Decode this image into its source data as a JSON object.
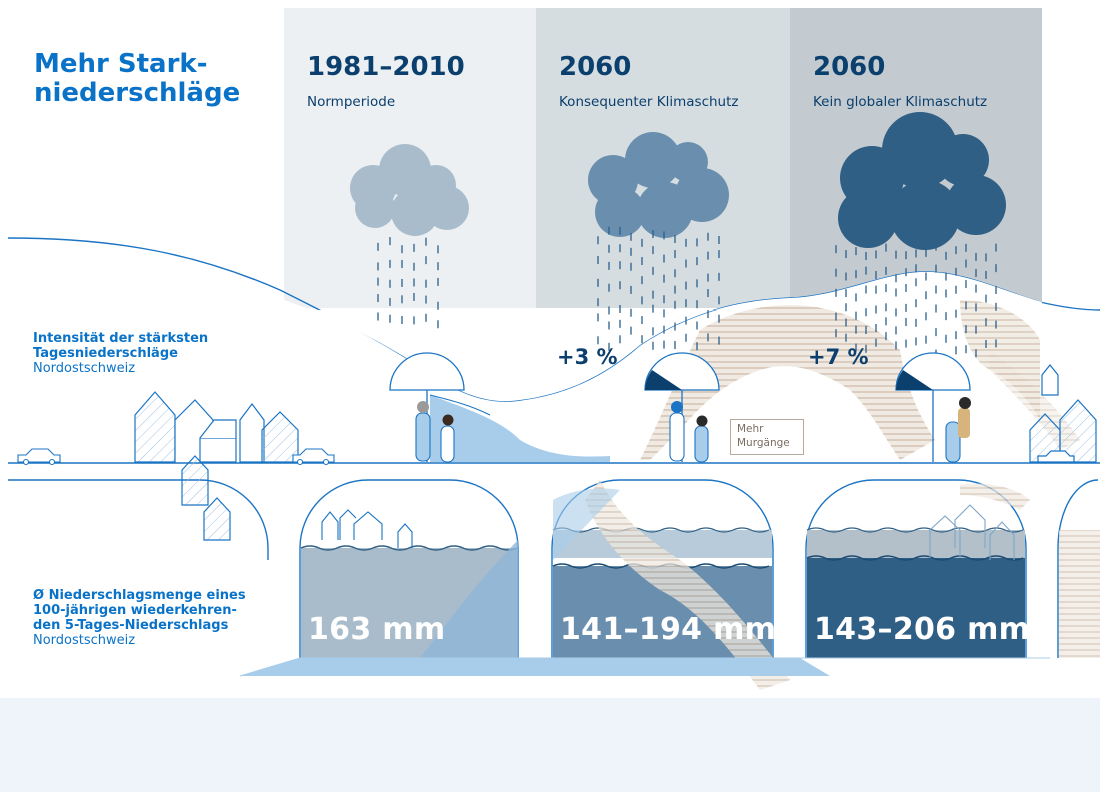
{
  "title": {
    "line1": "Mehr Stark-",
    "line2": "niederschläge"
  },
  "periods": [
    {
      "year": "1981–2010",
      "subtitle": "Normperiode"
    },
    {
      "year": "2060",
      "subtitle": "Konsequenter Klimaschutz"
    },
    {
      "year": "2060",
      "subtitle": "Kein globaler Klimaschutz"
    }
  ],
  "intensity_label": {
    "bold_line1": "Intensität der stärksten",
    "bold_line2": "Tagesniederschläge",
    "region": "Nordostschweiz"
  },
  "amount_label": {
    "bold_line1": "Ø Niederschlagsmenge eines",
    "bold_line2": "100-jährigen wiederkehren-",
    "bold_line3": "den 5-Tages-Niederschlags",
    "region": "Nordostschweiz"
  },
  "intensity_change": [
    "+3 %",
    "+7 %"
  ],
  "amounts": [
    "163 mm",
    "141–194 mm",
    "143–206 mm"
  ],
  "callout": {
    "line1": "Mehr",
    "line2": "Murgänge"
  },
  "colors": {
    "accent_blue": "#0a73c8",
    "dark_navy": "#0b3f6d",
    "cloud_light": "#a9bccb",
    "cloud_medium": "#6a8fae",
    "cloud_dark": "#2f5f85",
    "mudflow": "#c9b9a6"
  }
}
